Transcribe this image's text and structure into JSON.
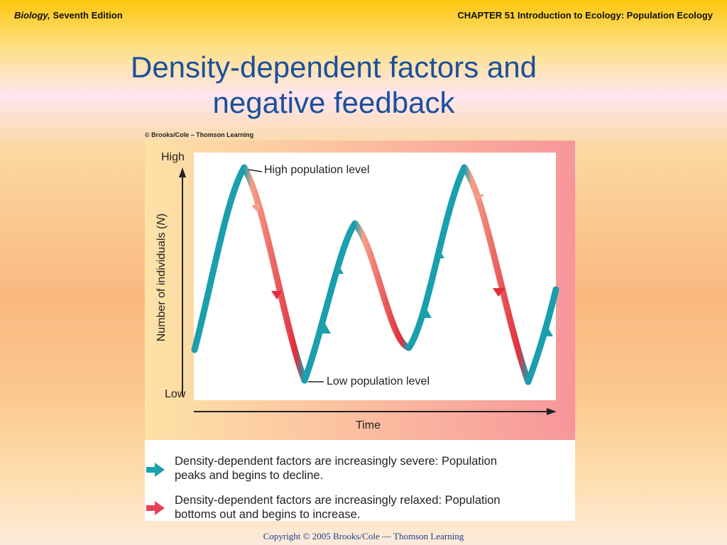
{
  "header": {
    "book_title": "Biology,",
    "edition": "Seventh Edition",
    "chapter": "CHAPTER 51 Introduction to Ecology: Population Ecology"
  },
  "slide": {
    "title_line1": "Density-dependent factors and",
    "title_line2": "negative feedback"
  },
  "figure": {
    "credit": "© Brooks/Cole – Thomson Learning",
    "y_axis_prefix": "Number of individuals (",
    "y_axis_var": "N",
    "y_axis_suffix": ")",
    "y_high": "High",
    "y_low": "Low",
    "x_axis_label": "Time",
    "annotation_high": "High population level",
    "annotation_low": "Low population level",
    "colors": {
      "increase": "#1a9fad",
      "decrease": "#e0303e"
    }
  },
  "legend": [
    {
      "arrow_color": "#1a9fad",
      "line1": "Density-dependent factors are increasingly severe:  Population",
      "line2": "peaks and begins to decline."
    },
    {
      "arrow_color": "#e8405a",
      "line1": "Density-dependent factors are increasingly relaxed:  Population",
      "line2": "bottoms out and begins to increase."
    }
  ],
  "footer": {
    "copyright": "Copyright © 2005 Brooks/Cole — Thomson Learning"
  }
}
